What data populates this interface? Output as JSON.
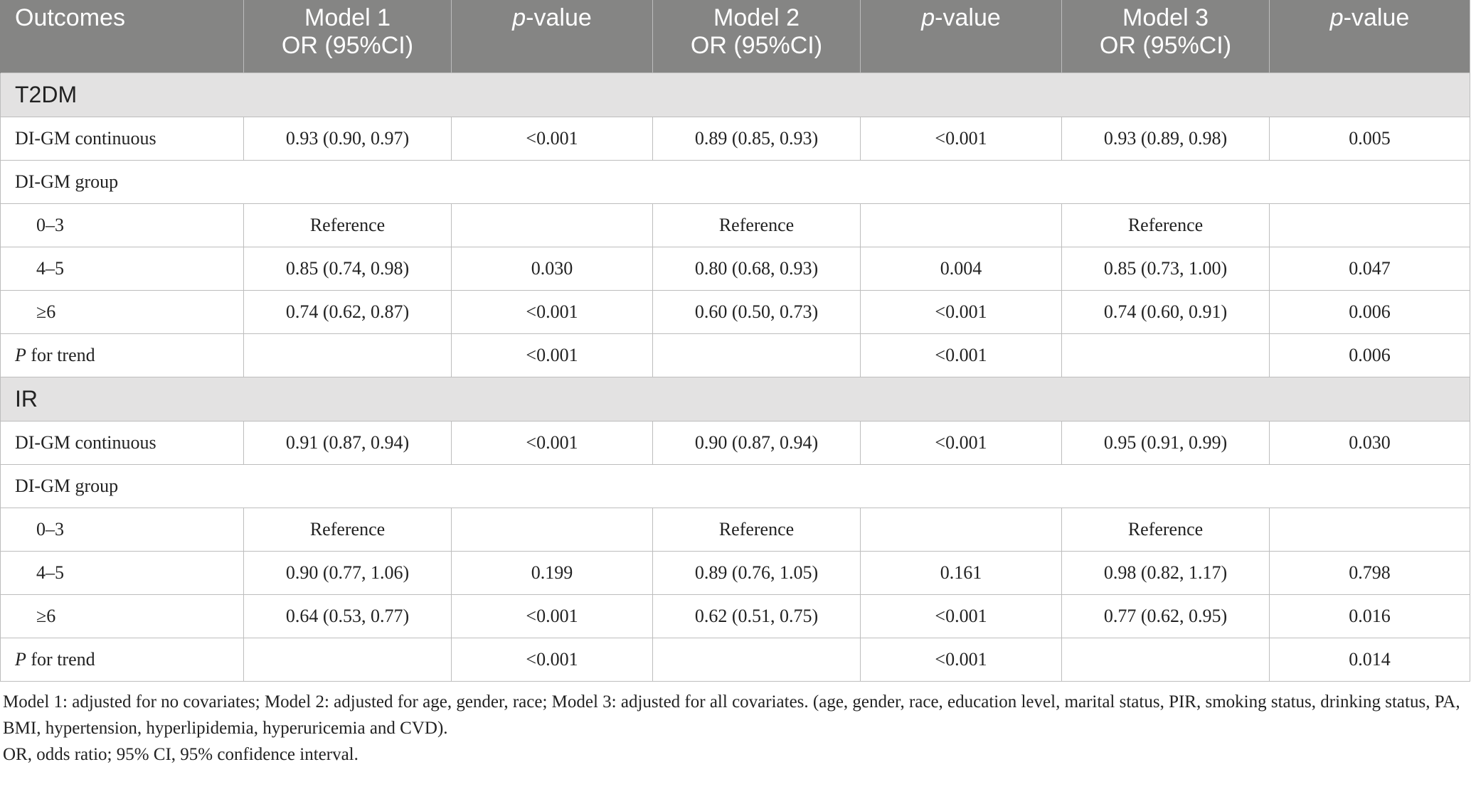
{
  "header": {
    "outcomes": "Outcomes",
    "model1_line1": "Model 1",
    "model1_line2": "OR (95%CI)",
    "pvalue_p": "p",
    "pvalue_rest": "-value",
    "model2_line1": "Model 2",
    "model2_line2": "OR (95%CI)",
    "model3_line1": "Model 3",
    "model3_line2": "OR (95%CI)"
  },
  "sections": [
    {
      "title": "T2DM",
      "rows": [
        {
          "label": "DI-GM continuous",
          "m1": "0.93 (0.90, 0.97)",
          "p1": "<0.001",
          "m2": "0.89 (0.85, 0.93)",
          "p2": "<0.001",
          "m3": "0.93 (0.89, 0.98)",
          "p3": "0.005"
        },
        {
          "label": "DI-GM group",
          "m1": "",
          "p1": "",
          "m2": "",
          "p2": "",
          "m3": "",
          "p3": ""
        },
        {
          "label": "0–3",
          "m1": "Reference",
          "p1": "",
          "m2": "Reference",
          "p2": "",
          "m3": "Reference",
          "p3": ""
        },
        {
          "label": "4–5",
          "m1": "0.85 (0.74, 0.98)",
          "p1": "0.030",
          "m2": "0.80 (0.68, 0.93)",
          "p2": "0.004",
          "m3": "0.85 (0.73, 1.00)",
          "p3": "0.047"
        },
        {
          "label": "≥6",
          "m1": "0.74 (0.62, 0.87)",
          "p1": "<0.001",
          "m2": "0.60 (0.50, 0.73)",
          "p2": "<0.001",
          "m3": "0.74 (0.60, 0.91)",
          "p3": "0.006"
        },
        {
          "label_p": "P",
          "label_rest": " for trend",
          "m1": "",
          "p1": "<0.001",
          "m2": "",
          "p2": "<0.001",
          "m3": "",
          "p3": "0.006"
        }
      ]
    },
    {
      "title": "IR",
      "rows": [
        {
          "label": "DI-GM continuous",
          "m1": "0.91 (0.87, 0.94)",
          "p1": "<0.001",
          "m2": "0.90 (0.87, 0.94)",
          "p2": "<0.001",
          "m3": "0.95 (0.91, 0.99)",
          "p3": "0.030"
        },
        {
          "label": "DI-GM group",
          "m1": "",
          "p1": "",
          "m2": "",
          "p2": "",
          "m3": "",
          "p3": ""
        },
        {
          "label": "0–3",
          "m1": "Reference",
          "p1": "",
          "m2": "Reference",
          "p2": "",
          "m3": "Reference",
          "p3": ""
        },
        {
          "label": "4–5",
          "m1": "0.90 (0.77, 1.06)",
          "p1": "0.199",
          "m2": "0.89 (0.76, 1.05)",
          "p2": "0.161",
          "m3": "0.98 (0.82, 1.17)",
          "p3": "0.798"
        },
        {
          "label": "≥6",
          "m1": "0.64 (0.53, 0.77)",
          "p1": "<0.001",
          "m2": "0.62 (0.51, 0.75)",
          "p2": "<0.001",
          "m3": "0.77 (0.62, 0.95)",
          "p3": "0.016"
        },
        {
          "label_p": "P",
          "label_rest": " for trend",
          "m1": "",
          "p1": "<0.001",
          "m2": "",
          "p2": "<0.001",
          "m3": "",
          "p3": "0.014"
        }
      ]
    }
  ],
  "footnotes": {
    "line1": "Model 1: adjusted for no covariates; Model 2: adjusted for age, gender, race; Model 3: adjusted for all covariates. (age, gender, race, education level, marital status, PIR, smoking status, drinking status, PA, BMI, hypertension, hyperlipidemia, hyperuricemia and CVD).",
    "line2": "OR, odds ratio; 95% CI, 95% confidence interval."
  }
}
